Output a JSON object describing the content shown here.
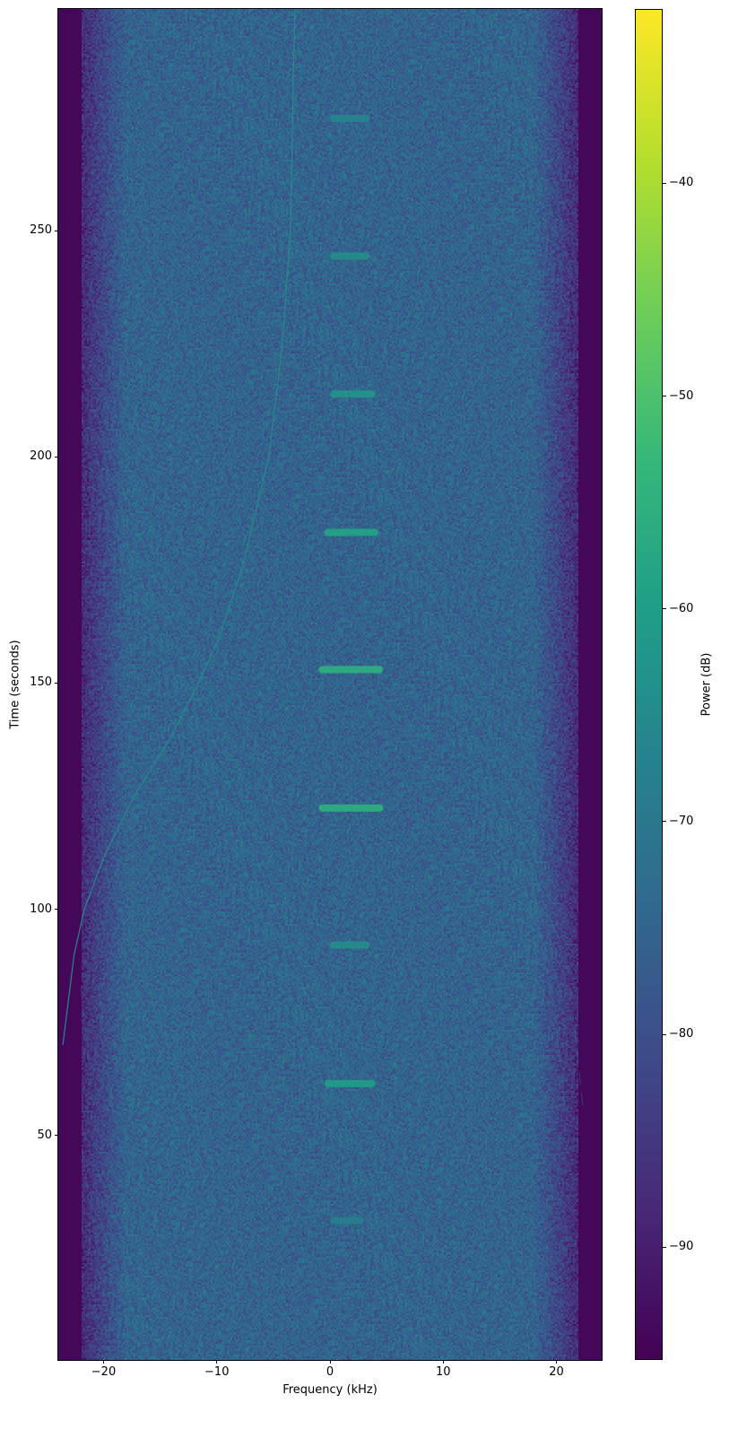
{
  "chart_data": {
    "type": "heatmap",
    "title": "",
    "xlabel": "Frequency (kHz)",
    "ylabel": "Time (seconds)",
    "colorbar_label": "Power (dB)",
    "xlim": [
      -24,
      24
    ],
    "ylim": [
      0.4,
      299
    ],
    "clim": [
      -95.3,
      -31.8
    ],
    "colormap": "viridis",
    "xticks": [
      -20,
      -10,
      0,
      10,
      20
    ],
    "xtick_labels": [
      "−20",
      "−10",
      "0",
      "10",
      "20"
    ],
    "yticks": [
      50,
      100,
      150,
      200,
      250
    ],
    "ytick_labels": [
      "50",
      "100",
      "150",
      "200",
      "250"
    ],
    "cticks": [
      -90,
      -80,
      -70,
      -60,
      -50,
      -40
    ],
    "ctick_labels": [
      "−90",
      "−80",
      "−70",
      "−60",
      "−50",
      "−40"
    ],
    "noise_floor_db": -75,
    "band_edge_khz": 22,
    "bursts": [
      {
        "time": 274.8,
        "f_start": 0,
        "f_end": 3.5,
        "power_db": -66
      },
      {
        "time": 244.4,
        "f_start": 0,
        "f_end": 3.5,
        "power_db": -64
      },
      {
        "time": 213.9,
        "f_start": 0,
        "f_end": 4,
        "power_db": -62
      },
      {
        "time": 183.3,
        "f_start": -0.5,
        "f_end": 4.3,
        "power_db": -58
      },
      {
        "time": 153.0,
        "f_start": -1,
        "f_end": 4.7,
        "power_db": -55
      },
      {
        "time": 122.4,
        "f_start": -1,
        "f_end": 4.7,
        "power_db": -55
      },
      {
        "time": 92.1,
        "f_start": 0,
        "f_end": 3.5,
        "power_db": -64
      },
      {
        "time": 61.5,
        "f_start": -0.5,
        "f_end": 4,
        "power_db": -60
      },
      {
        "time": 31.2,
        "f_start": 0,
        "f_end": 3,
        "power_db": -68
      }
    ],
    "doppler_trace": {
      "power_db": -65,
      "points": [
        {
          "time": 299,
          "freq": -3.1
        },
        {
          "time": 275,
          "freq": -3.3
        },
        {
          "time": 250,
          "freq": -3.5
        },
        {
          "time": 225,
          "freq": -4.2
        },
        {
          "time": 200,
          "freq": -5.4
        },
        {
          "time": 175,
          "freq": -7.8
        },
        {
          "time": 160,
          "freq": -9.8
        },
        {
          "time": 150,
          "freq": -11.6
        },
        {
          "time": 137,
          "freq": -14.3
        },
        {
          "time": 125,
          "freq": -17.3
        },
        {
          "time": 112,
          "freq": -19.9
        },
        {
          "time": 100,
          "freq": -21.7
        },
        {
          "time": 90,
          "freq": -22.6
        },
        {
          "time": 80,
          "freq": -23.1
        },
        {
          "time": 70,
          "freq": -23.6
        }
      ]
    },
    "streak_band": {
      "t_start": 55,
      "t_end": 83,
      "power_db": -68
    }
  }
}
